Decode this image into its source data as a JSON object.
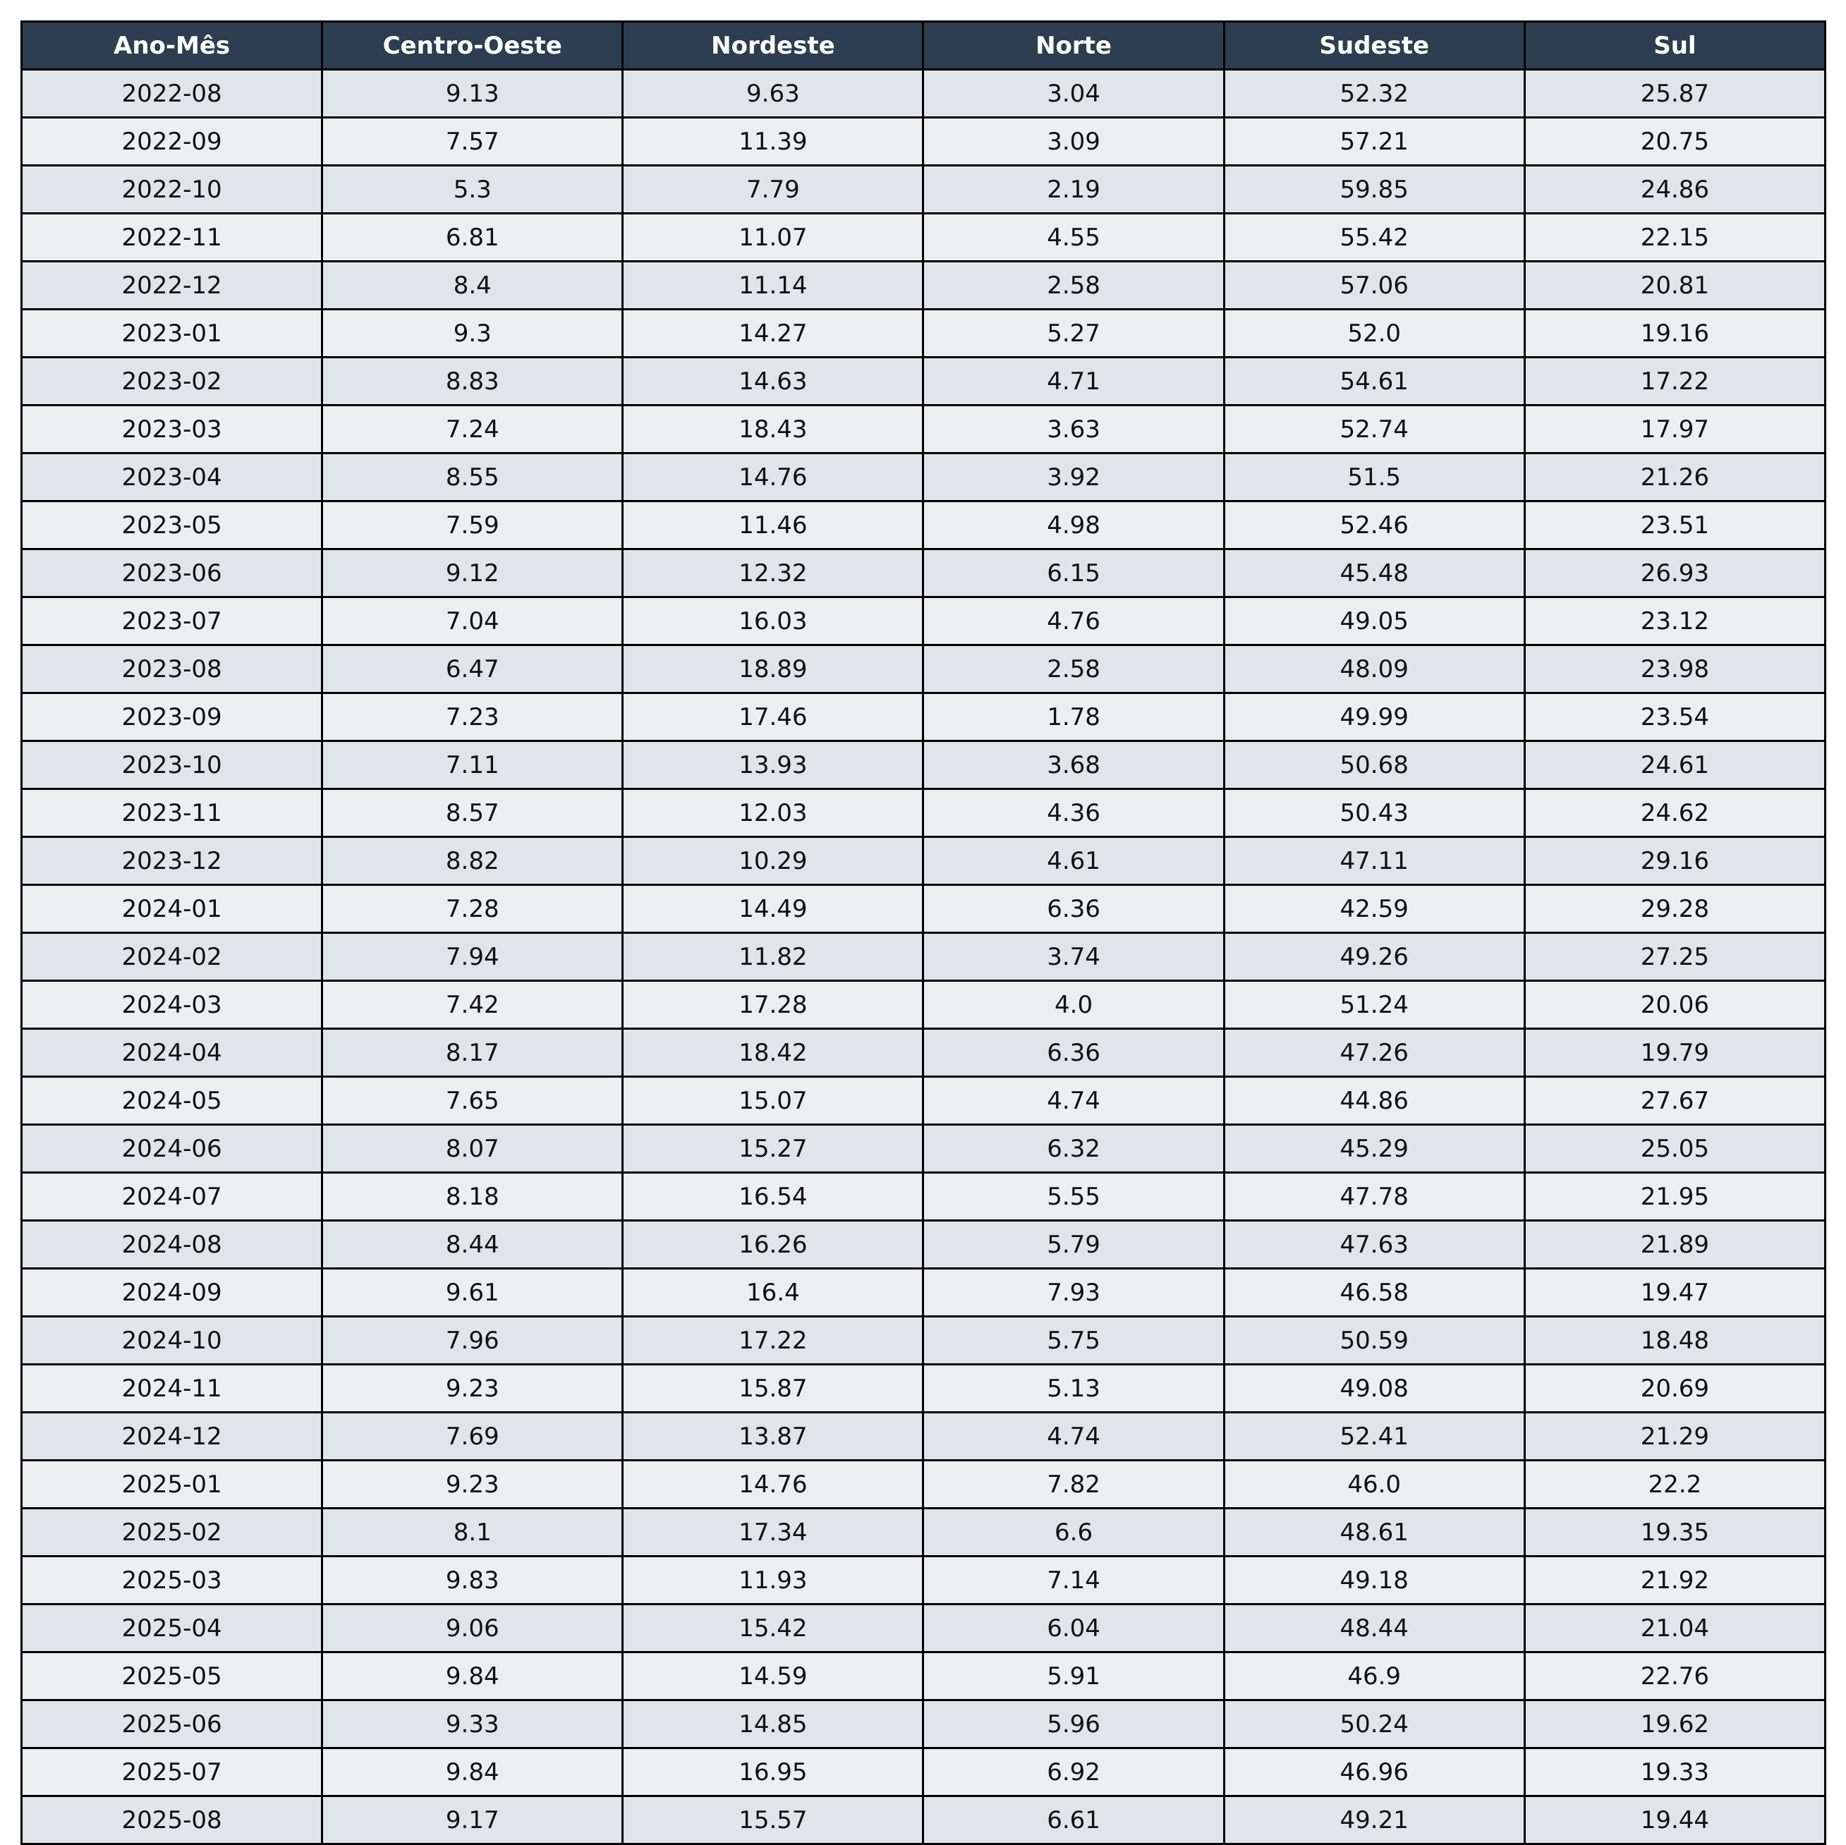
{
  "chart_data": {
    "type": "table",
    "columns": [
      "Ano-Mês",
      "Centro-Oeste",
      "Nordeste",
      "Norte",
      "Sudeste",
      "Sul"
    ],
    "rows": [
      [
        "2022-08",
        "9.13",
        "9.63",
        "3.04",
        "52.32",
        "25.87"
      ],
      [
        "2022-09",
        "7.57",
        "11.39",
        "3.09",
        "57.21",
        "20.75"
      ],
      [
        "2022-10",
        "5.3",
        "7.79",
        "2.19",
        "59.85",
        "24.86"
      ],
      [
        "2022-11",
        "6.81",
        "11.07",
        "4.55",
        "55.42",
        "22.15"
      ],
      [
        "2022-12",
        "8.4",
        "11.14",
        "2.58",
        "57.06",
        "20.81"
      ],
      [
        "2023-01",
        "9.3",
        "14.27",
        "5.27",
        "52.0",
        "19.16"
      ],
      [
        "2023-02",
        "8.83",
        "14.63",
        "4.71",
        "54.61",
        "17.22"
      ],
      [
        "2023-03",
        "7.24",
        "18.43",
        "3.63",
        "52.74",
        "17.97"
      ],
      [
        "2023-04",
        "8.55",
        "14.76",
        "3.92",
        "51.5",
        "21.26"
      ],
      [
        "2023-05",
        "7.59",
        "11.46",
        "4.98",
        "52.46",
        "23.51"
      ],
      [
        "2023-06",
        "9.12",
        "12.32",
        "6.15",
        "45.48",
        "26.93"
      ],
      [
        "2023-07",
        "7.04",
        "16.03",
        "4.76",
        "49.05",
        "23.12"
      ],
      [
        "2023-08",
        "6.47",
        "18.89",
        "2.58",
        "48.09",
        "23.98"
      ],
      [
        "2023-09",
        "7.23",
        "17.46",
        "1.78",
        "49.99",
        "23.54"
      ],
      [
        "2023-10",
        "7.11",
        "13.93",
        "3.68",
        "50.68",
        "24.61"
      ],
      [
        "2023-11",
        "8.57",
        "12.03",
        "4.36",
        "50.43",
        "24.62"
      ],
      [
        "2023-12",
        "8.82",
        "10.29",
        "4.61",
        "47.11",
        "29.16"
      ],
      [
        "2024-01",
        "7.28",
        "14.49",
        "6.36",
        "42.59",
        "29.28"
      ],
      [
        "2024-02",
        "7.94",
        "11.82",
        "3.74",
        "49.26",
        "27.25"
      ],
      [
        "2024-03",
        "7.42",
        "17.28",
        "4.0",
        "51.24",
        "20.06"
      ],
      [
        "2024-04",
        "8.17",
        "18.42",
        "6.36",
        "47.26",
        "19.79"
      ],
      [
        "2024-05",
        "7.65",
        "15.07",
        "4.74",
        "44.86",
        "27.67"
      ],
      [
        "2024-06",
        "8.07",
        "15.27",
        "6.32",
        "45.29",
        "25.05"
      ],
      [
        "2024-07",
        "8.18",
        "16.54",
        "5.55",
        "47.78",
        "21.95"
      ],
      [
        "2024-08",
        "8.44",
        "16.26",
        "5.79",
        "47.63",
        "21.89"
      ],
      [
        "2024-09",
        "9.61",
        "16.4",
        "7.93",
        "46.58",
        "19.47"
      ],
      [
        "2024-10",
        "7.96",
        "17.22",
        "5.75",
        "50.59",
        "18.48"
      ],
      [
        "2024-11",
        "9.23",
        "15.87",
        "5.13",
        "49.08",
        "20.69"
      ],
      [
        "2024-12",
        "7.69",
        "13.87",
        "4.74",
        "52.41",
        "21.29"
      ],
      [
        "2025-01",
        "9.23",
        "14.76",
        "7.82",
        "46.0",
        "22.2"
      ],
      [
        "2025-02",
        "8.1",
        "17.34",
        "6.6",
        "48.61",
        "19.35"
      ],
      [
        "2025-03",
        "9.83",
        "11.93",
        "7.14",
        "49.18",
        "21.92"
      ],
      [
        "2025-04",
        "9.06",
        "15.42",
        "6.04",
        "48.44",
        "21.04"
      ],
      [
        "2025-05",
        "9.84",
        "14.59",
        "5.91",
        "46.9",
        "22.76"
      ],
      [
        "2025-06",
        "9.33",
        "14.85",
        "5.96",
        "50.24",
        "19.62"
      ],
      [
        "2025-07",
        "9.84",
        "16.95",
        "6.92",
        "46.96",
        "19.33"
      ],
      [
        "2025-08",
        "9.17",
        "15.57",
        "6.61",
        "49.21",
        "19.44"
      ]
    ]
  },
  "colors": {
    "header_bg": "#2c3e50",
    "header_text": "#ffffff",
    "row_odd": "#dfe5e8",
    "row_even": "#eceff0",
    "border": "#000000"
  }
}
